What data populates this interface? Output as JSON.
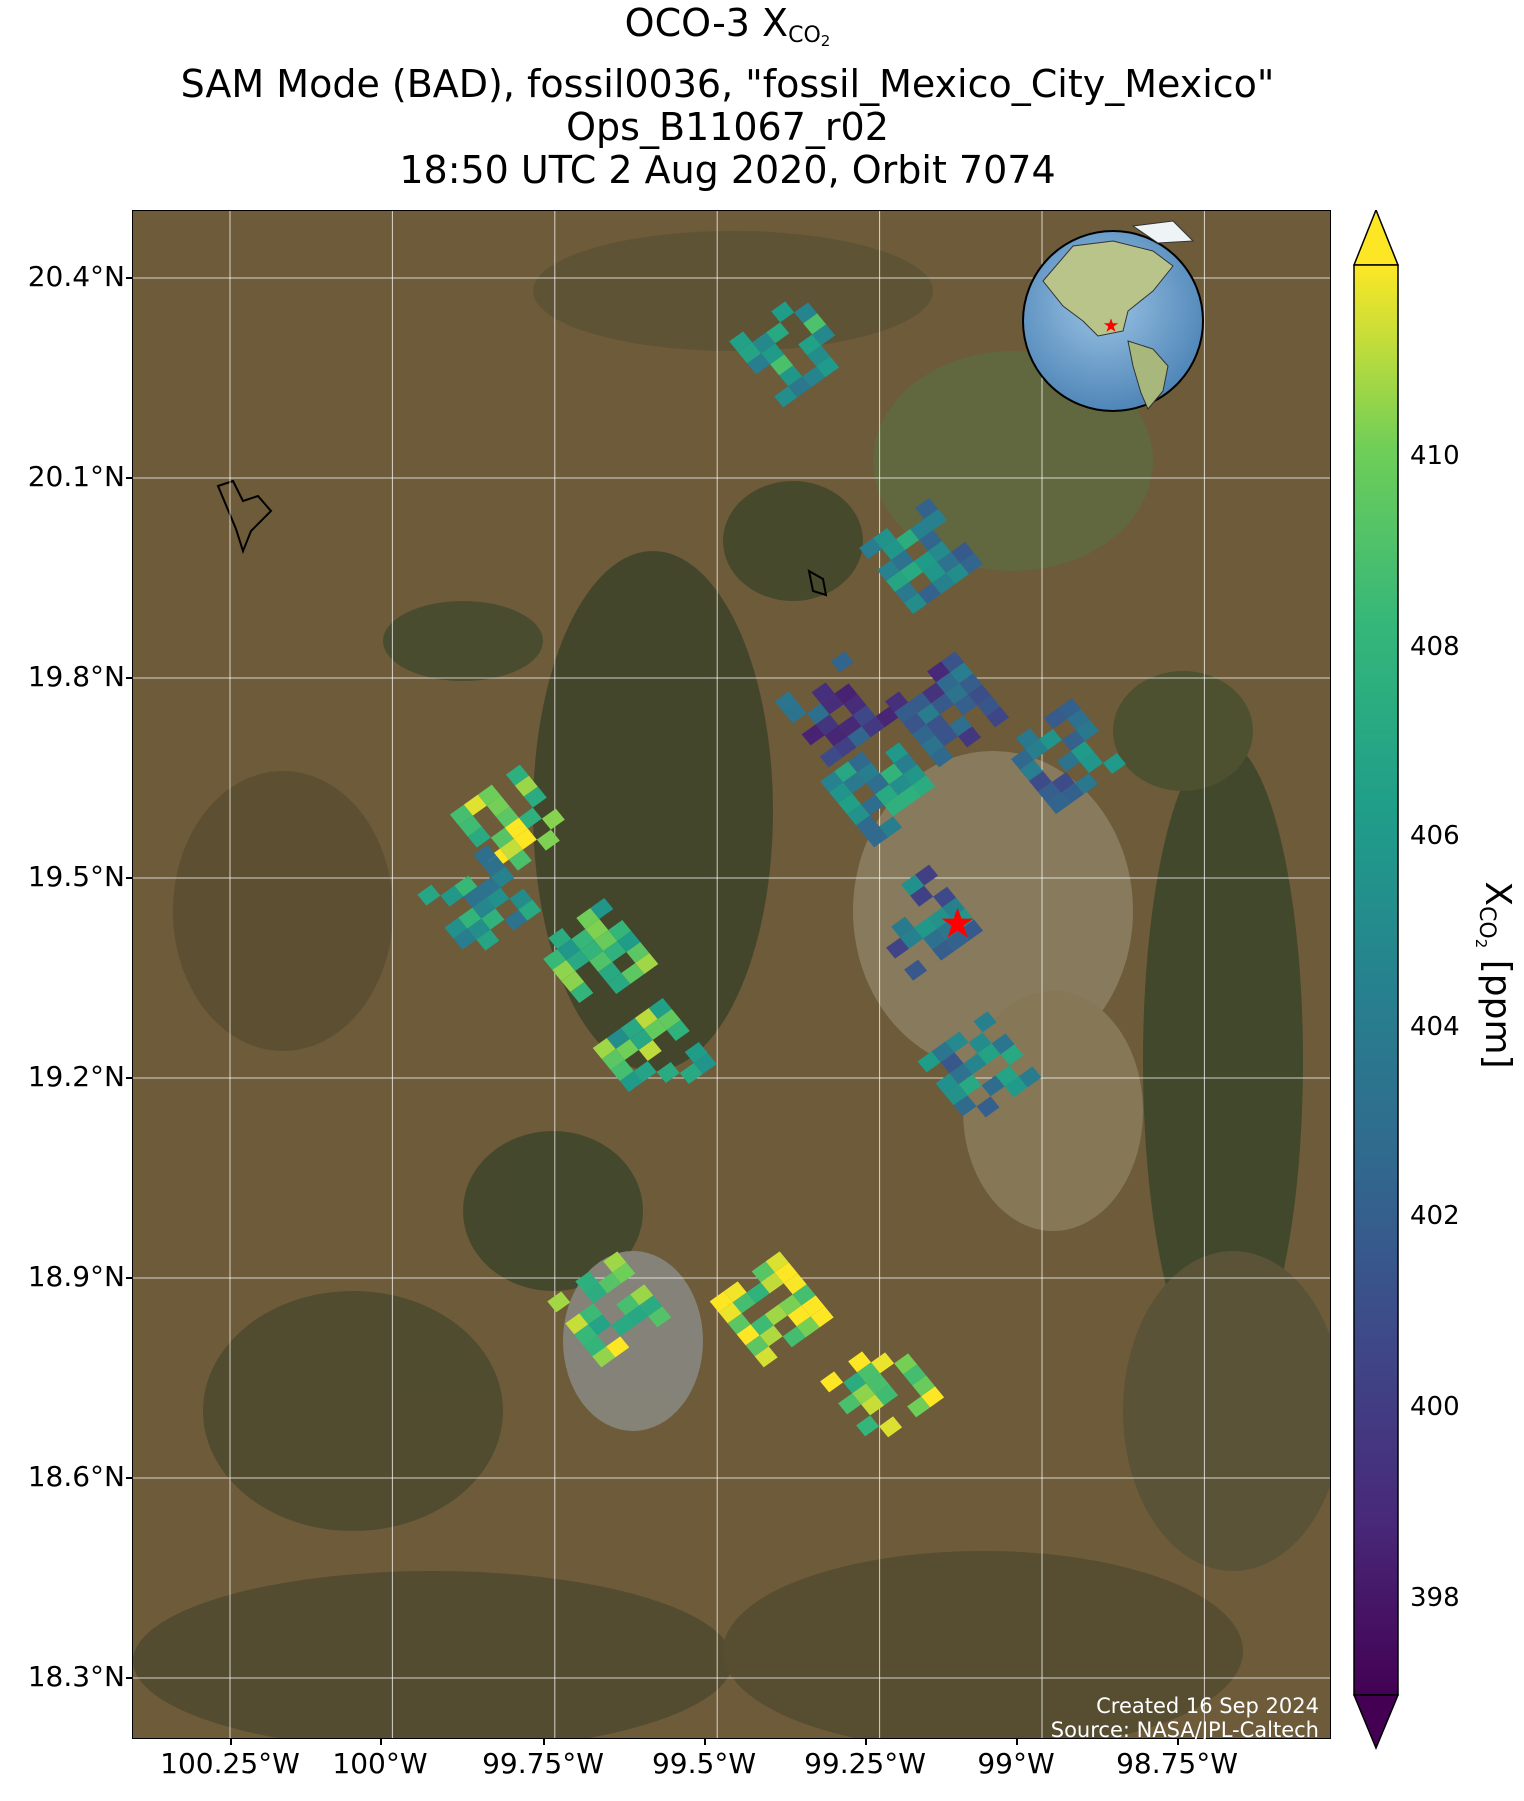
{
  "title": {
    "line1_prefix": "OCO-3 X",
    "line1_sub": "CO",
    "line1_subsub": "2",
    "line2": "SAM Mode (BAD), fossil0036, \"fossil_Mexico_City_Mexico\"",
    "line3": "Ops_B11067_r02",
    "line4": "18:50 UTC 2 Aug 2020, Orbit 7074"
  },
  "axes": {
    "lat_ticks": [
      "20.4°N",
      "20.1°N",
      "19.8°N",
      "19.5°N",
      "19.2°N",
      "18.9°N",
      "18.6°N",
      "18.3°N"
    ],
    "lon_ticks": [
      "100.25°W",
      "100°W",
      "99.75°W",
      "99.5°W",
      "99.25°W",
      "99°W",
      "98.75°W"
    ]
  },
  "credits": {
    "created": "Created 16 Sep 2024",
    "source": "Source: NASA/JPL-Caltech"
  },
  "colorbar": {
    "ticks": [
      "398",
      "400",
      "402",
      "404",
      "406",
      "408",
      "410"
    ],
    "label_prefix": "X",
    "label_sub": "CO",
    "label_subsub": "2",
    "label_suffix": " [ppm]",
    "range": [
      396.8,
      411.8
    ],
    "colormap": "viridis",
    "extend": "both"
  },
  "map": {
    "type": "satellite basemap with XCO2 sounding footprints",
    "lon_range": [
      -100.4,
      -98.5
    ],
    "lat_range": [
      18.2,
      20.5
    ],
    "target_marker": {
      "lon": -99.13,
      "lat": 19.43,
      "color": "#ff0000",
      "icon": "star-icon"
    },
    "inset": "globe-icon showing Americas with red star at Mexico City",
    "gridlines": true
  },
  "chart_data": {
    "type": "heatmap",
    "variable": "XCO2",
    "units": "ppm",
    "clusters": [
      {
        "lon": -99.42,
        "lat": 20.26,
        "value": 406.0
      },
      {
        "lon": -99.22,
        "lat": 19.95,
        "value": 404.5
      },
      {
        "lon": -99.35,
        "lat": 19.72,
        "value": 401.0
      },
      {
        "lon": -99.18,
        "lat": 19.72,
        "value": 401.5
      },
      {
        "lon": -99.0,
        "lat": 19.65,
        "value": 403.5
      },
      {
        "lon": -99.28,
        "lat": 19.6,
        "value": 405.0
      },
      {
        "lon": -99.85,
        "lat": 19.55,
        "value": 409.5
      },
      {
        "lon": -99.9,
        "lat": 19.43,
        "value": 405.5
      },
      {
        "lon": -99.72,
        "lat": 19.35,
        "value": 408.5
      },
      {
        "lon": -99.22,
        "lat": 19.4,
        "value": 403.0
      },
      {
        "lon": -99.63,
        "lat": 19.2,
        "value": 408.0
      },
      {
        "lon": -99.13,
        "lat": 19.18,
        "value": 404.0
      },
      {
        "lon": -99.7,
        "lat": 18.82,
        "value": 409.5
      },
      {
        "lon": -99.45,
        "lat": 18.82,
        "value": 410.5
      },
      {
        "lon": -99.28,
        "lat": 18.7,
        "value": 410.0
      }
    ]
  }
}
